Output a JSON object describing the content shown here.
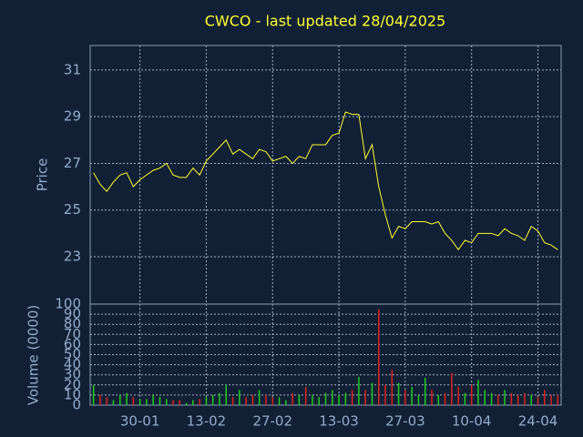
{
  "chart_data": [
    {
      "type": "line",
      "title": "CWCO - last updated 28/04/2025",
      "y_label": "Price",
      "categories": [
        null,
        null,
        null,
        null,
        null,
        null,
        null,
        "30-01",
        null,
        null,
        null,
        null,
        null,
        null,
        null,
        null,
        null,
        "13-02",
        null,
        null,
        null,
        null,
        null,
        null,
        null,
        null,
        null,
        "27-02",
        null,
        null,
        null,
        null,
        null,
        null,
        null,
        null,
        null,
        "13-03",
        null,
        null,
        null,
        null,
        null,
        null,
        null,
        null,
        null,
        "27-03",
        null,
        null,
        null,
        null,
        null,
        null,
        null,
        null,
        null,
        "10-04",
        null,
        null,
        null,
        null,
        null,
        null,
        null,
        null,
        null,
        "24-04",
        null,
        null,
        null
      ],
      "series": [
        {
          "color": "#ffff33",
          "values": [
            26.6,
            26.1,
            25.8,
            26.2,
            26.5,
            26.6,
            26.0,
            26.3,
            26.5,
            26.7,
            26.8,
            27.0,
            26.5,
            26.4,
            26.4,
            26.8,
            26.5,
            27.1,
            27.4,
            27.7,
            28.0,
            27.4,
            27.6,
            27.4,
            27.2,
            27.6,
            27.5,
            27.1,
            27.2,
            27.3,
            27.0,
            27.3,
            27.2,
            27.8,
            27.8,
            27.8,
            28.2,
            28.3,
            29.2,
            29.1,
            29.1,
            27.2,
            27.8,
            26.0,
            24.8,
            23.8,
            24.3,
            24.2,
            24.5,
            24.5,
            24.5,
            24.4,
            24.5,
            24.0,
            23.7,
            23.3,
            23.7,
            23.6,
            24.0,
            24.0,
            24.0,
            23.9,
            24.2,
            24.0,
            23.9,
            23.7,
            24.3,
            24.1,
            23.6,
            23.5,
            23.3
          ]
        }
      ],
      "ylim": [
        20.97,
        32.05
      ],
      "yticks": [
        23,
        25,
        27,
        29,
        31
      ],
      "grid": true
    },
    {
      "type": "bar",
      "y_label": "Volume (0000)",
      "up_color": "#22cc22",
      "down_color": "#dd2222",
      "values": [
        20,
        10,
        8,
        5,
        10,
        12,
        8,
        6,
        6,
        10,
        8,
        6,
        5,
        5,
        2,
        5,
        6,
        8,
        10,
        12,
        20,
        8,
        15,
        8,
        10,
        15,
        10,
        8,
        8,
        5,
        12,
        10,
        18,
        10,
        8,
        12,
        15,
        10,
        12,
        15,
        28,
        15,
        22,
        95,
        20,
        35,
        22,
        15,
        18,
        10,
        27,
        15,
        10,
        12,
        32,
        18,
        12,
        20,
        25,
        15,
        12,
        10,
        15,
        12,
        10,
        12,
        10,
        8,
        15,
        10,
        10
      ],
      "ylim": [
        0,
        100
      ],
      "yticks": [
        0,
        10,
        20,
        30,
        40,
        50,
        60,
        70,
        80,
        90,
        100
      ],
      "grid": true
    }
  ]
}
